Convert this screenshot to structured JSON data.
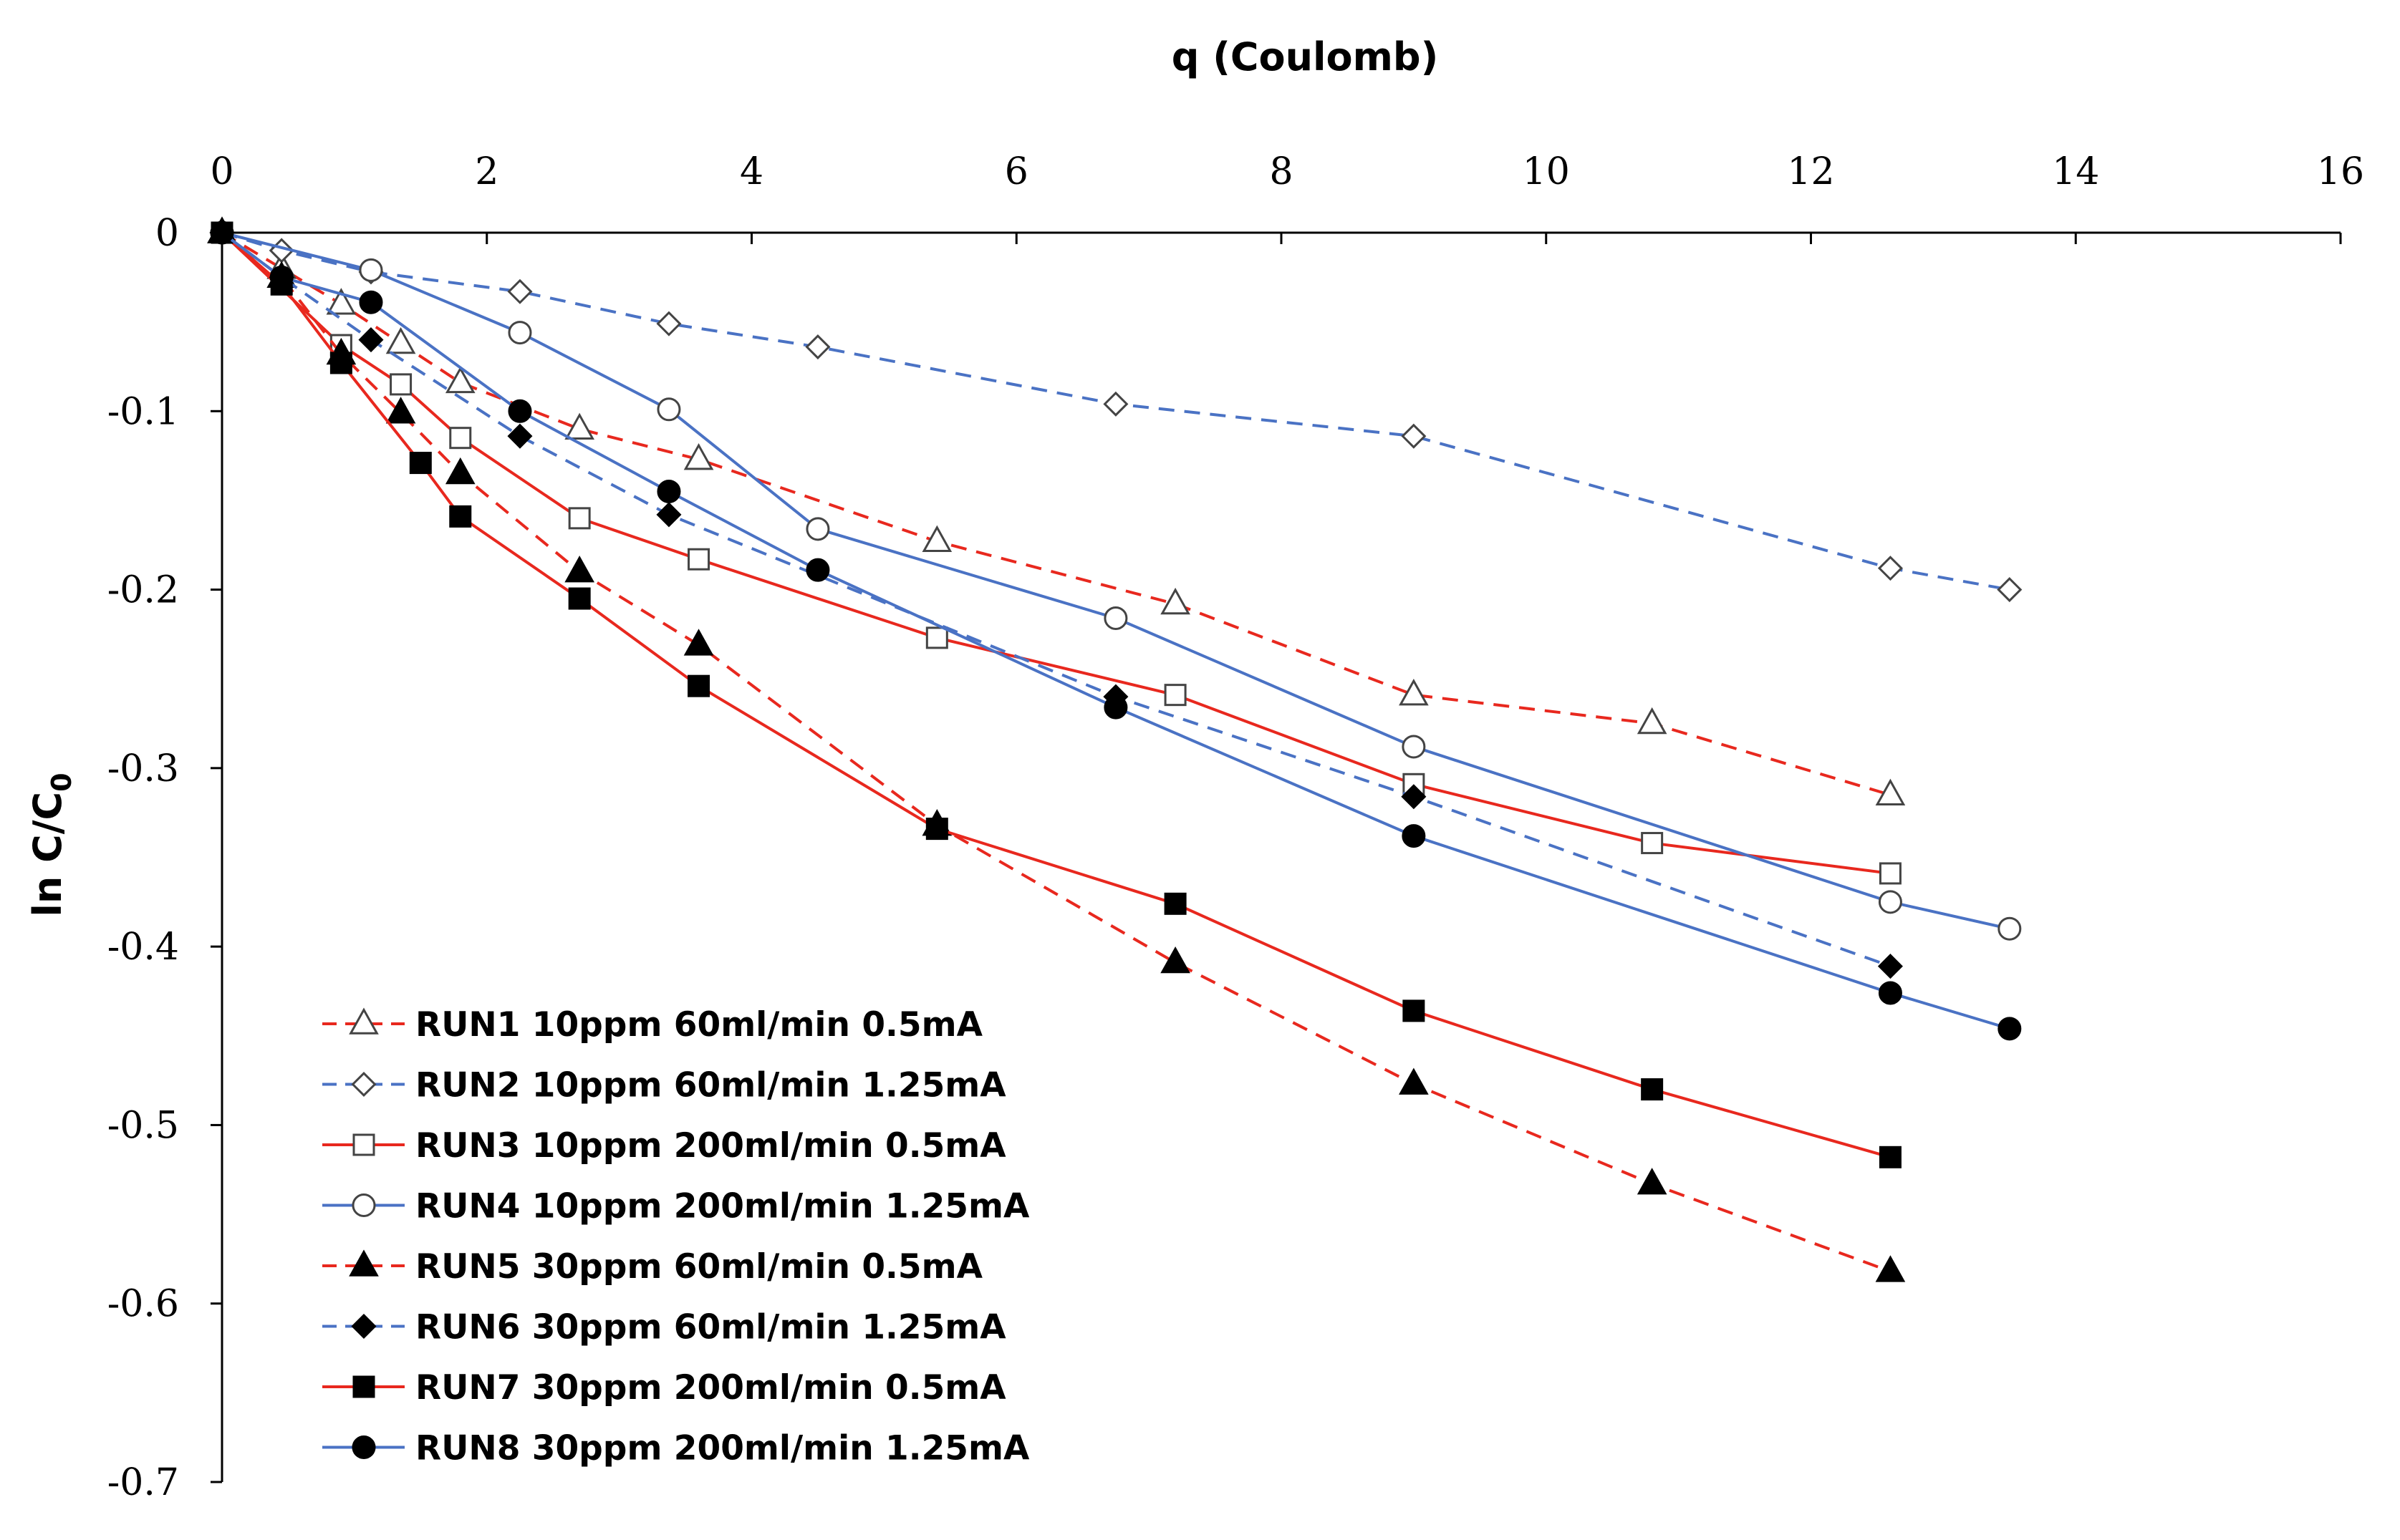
{
  "chart_data": {
    "type": "line",
    "title": "",
    "xlabel": "q (Coulomb)",
    "ylabel_main": "ln C/C",
    "ylabel_sub": "0",
    "xlim": [
      0,
      16
    ],
    "ylim": [
      -0.7,
      0
    ],
    "x_ticks": [
      "0",
      "2",
      "4",
      "6",
      "8",
      "10",
      "12",
      "14",
      "16"
    ],
    "y_ticks": [
      "0",
      "-0.1",
      "-0.2",
      "-0.3",
      "-0.4",
      "-0.5",
      "-0.6",
      "-0.7"
    ],
    "x_tick_values": [
      0,
      2,
      4,
      6,
      8,
      10,
      12,
      14,
      16
    ],
    "y_tick_values": [
      0,
      -0.1,
      -0.2,
      -0.3,
      -0.4,
      -0.5,
      -0.6,
      -0.7
    ],
    "grid": false,
    "x_axis_position": "top",
    "legend_position": "bottom-left",
    "series": [
      {
        "name": "RUN1 10ppm 60ml/min 0.5mA",
        "color": "#e8281e",
        "dash": "dashed",
        "marker": "triangle",
        "filled": false,
        "x": [
          0,
          0.45,
          0.9,
          1.35,
          1.8,
          2.7,
          3.6,
          5.4,
          7.2,
          9.0,
          10.8,
          12.6
        ],
        "y": [
          0,
          -0.02,
          -0.04,
          -0.062,
          -0.084,
          -0.11,
          -0.127,
          -0.173,
          -0.208,
          -0.259,
          -0.275,
          -0.315
        ]
      },
      {
        "name": "RUN2  10ppm 60ml/min 1.25mA",
        "color": "#4a72c4",
        "dash": "dashed",
        "marker": "diamond",
        "filled": false,
        "x": [
          0,
          0.45,
          1.125,
          2.25,
          3.375,
          4.5,
          6.75,
          9.0,
          12.6,
          13.5
        ],
        "y": [
          0,
          -0.01,
          -0.022,
          -0.033,
          -0.051,
          -0.064,
          -0.096,
          -0.114,
          -0.188,
          -0.2
        ]
      },
      {
        "name": "RUN3 10ppm 200ml/min 0.5mA",
        "color": "#e8281e",
        "dash": "solid",
        "marker": "square",
        "filled": false,
        "x": [
          0,
          0.9,
          1.35,
          1.8,
          2.7,
          3.6,
          5.4,
          7.2,
          9.0,
          10.8,
          12.6
        ],
        "y": [
          0,
          -0.063,
          -0.085,
          -0.115,
          -0.16,
          -0.183,
          -0.227,
          -0.259,
          -0.309,
          -0.342,
          -0.359
        ]
      },
      {
        "name": "RUN4  10ppm 200ml/min 1.25mA",
        "color": "#4a72c4",
        "dash": "solid",
        "marker": "circle",
        "filled": false,
        "x": [
          0,
          1.125,
          2.25,
          3.375,
          4.5,
          6.75,
          9.0,
          12.6,
          13.5
        ],
        "y": [
          0,
          -0.021,
          -0.056,
          -0.099,
          -0.166,
          -0.216,
          -0.288,
          -0.375,
          -0.39
        ]
      },
      {
        "name": "RUN5 30ppm 60ml/min 0.5mA",
        "color": "#e8281e",
        "dash": "dashed",
        "marker": "triangle",
        "filled": true,
        "x": [
          0,
          0.45,
          0.9,
          1.35,
          1.8,
          2.7,
          3.6,
          5.4,
          7.2,
          9.0,
          10.8,
          12.6
        ],
        "y": [
          0,
          -0.025,
          -0.068,
          -0.101,
          -0.135,
          -0.19,
          -0.231,
          -0.332,
          -0.409,
          -0.477,
          -0.533,
          -0.582
        ]
      },
      {
        "name": "RUN6  30ppm 60ml/min 1.25mA",
        "color": "#4a72c4",
        "dash": "dashed",
        "marker": "diamond",
        "filled": true,
        "x": [
          0,
          0.45,
          1.125,
          2.25,
          3.375,
          6.75,
          9.0,
          12.6
        ],
        "y": [
          0,
          -0.025,
          -0.06,
          -0.114,
          -0.158,
          -0.26,
          -0.316,
          -0.411
        ]
      },
      {
        "name": "RUN7 30ppm 200ml/min 0.5mA",
        "color": "#e8281e",
        "dash": "solid",
        "marker": "square",
        "filled": true,
        "x": [
          0,
          0.45,
          0.9,
          1.5,
          1.8,
          2.7,
          3.6,
          5.4,
          7.2,
          9.0,
          10.8,
          12.6
        ],
        "y": [
          0,
          -0.029,
          -0.073,
          -0.129,
          -0.159,
          -0.205,
          -0.254,
          -0.334,
          -0.376,
          -0.436,
          -0.48,
          -0.518
        ]
      },
      {
        "name": "RUN8  30ppm 200ml/min 1.25mA",
        "color": "#4a72c4",
        "dash": "solid",
        "marker": "circle",
        "filled": true,
        "x": [
          0,
          0.45,
          1.125,
          2.25,
          3.375,
          4.5,
          6.75,
          9.0,
          12.6,
          13.5
        ],
        "y": [
          0,
          -0.025,
          -0.039,
          -0.1,
          -0.145,
          -0.189,
          -0.266,
          -0.338,
          -0.426,
          -0.446
        ]
      }
    ]
  }
}
